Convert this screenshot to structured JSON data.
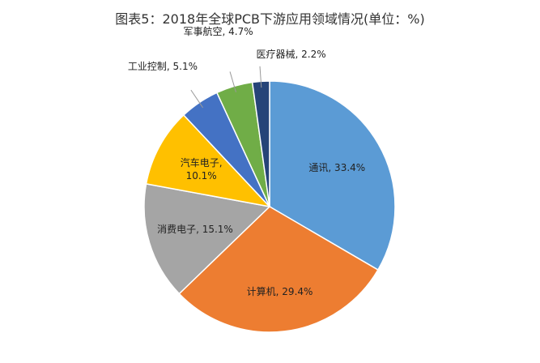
{
  "chart_data": {
    "type": "pie",
    "title": "图表5：2018年全球PCB下游应用领域情况(单位：%)",
    "values": [
      33.4,
      29.4,
      15.1,
      10.1,
      5.1,
      4.7,
      2.2
    ],
    "value_labels": [
      "通讯, 33.4%",
      "计算机, 29.4%",
      "消费电子, 15.1%",
      "汽车电子,\n10.1%",
      "工业控制, 5.1%",
      "军事航空, 4.7%",
      "医疗器械, 2.2%"
    ],
    "colors": [
      "#5b9bd5",
      "#ed7d31",
      "#a5a5a5",
      "#ffc000",
      "#4472c4",
      "#70ad47",
      "#264478"
    ]
  }
}
